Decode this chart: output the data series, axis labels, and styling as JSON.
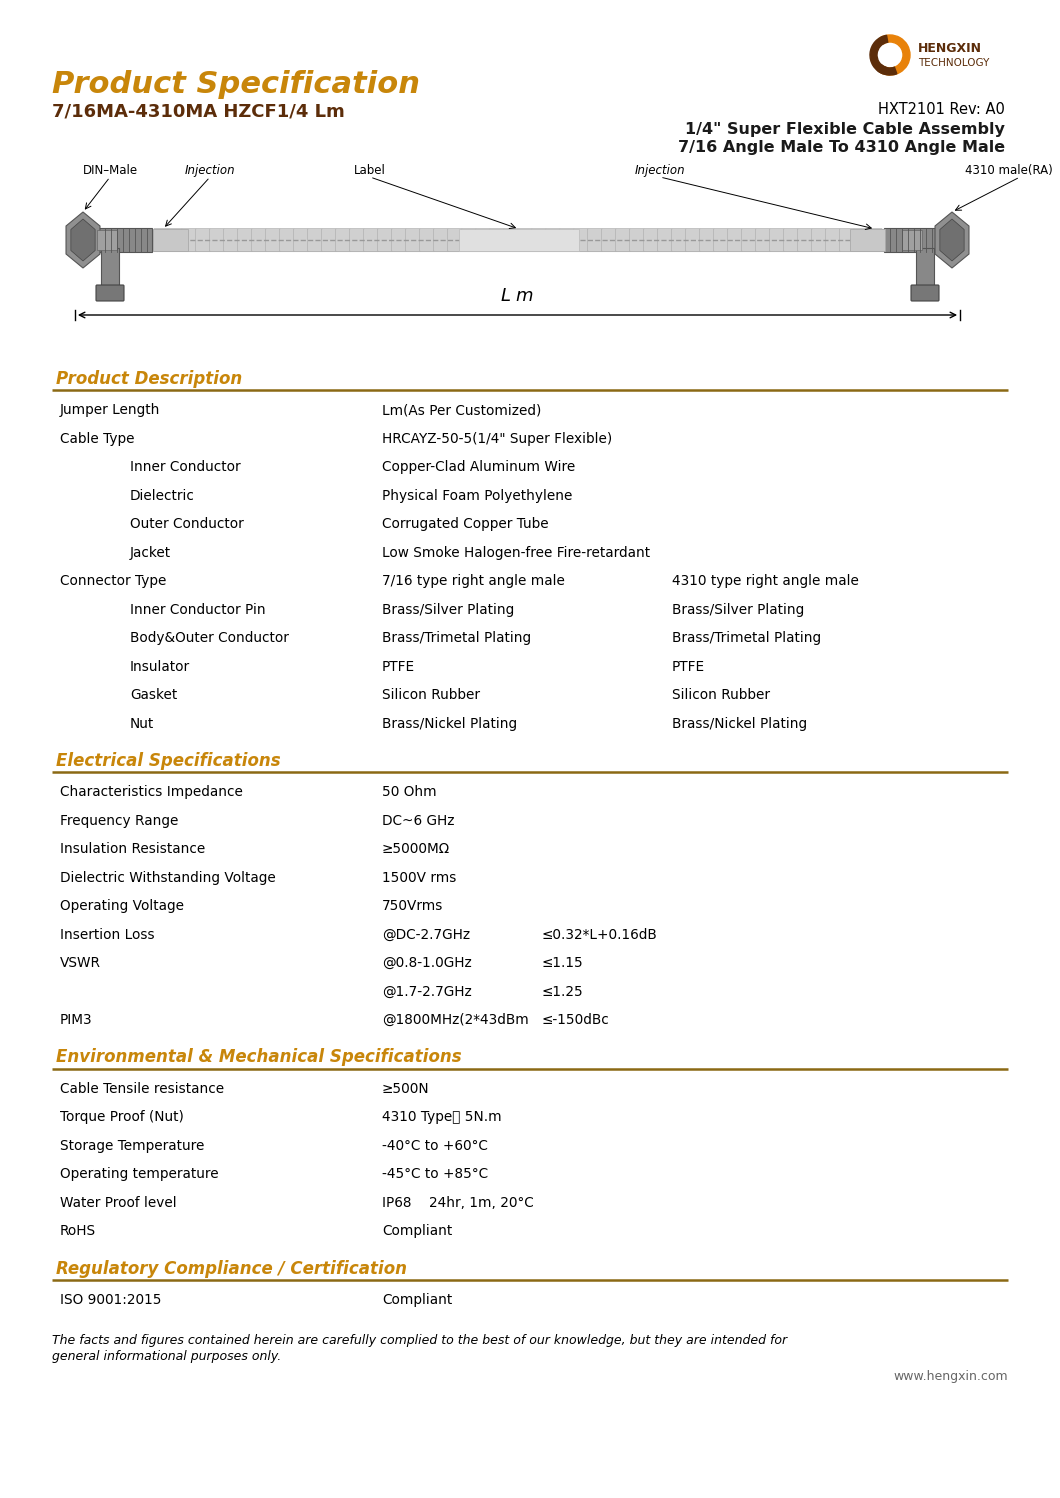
{
  "title": "Product Specification",
  "subtitle": "7/16MA-4310MA HZCF1/4 Lm",
  "model_code": "HXT2101 Rev: A0",
  "cable_title_line1": "1/4\" Super Flexible Cable Assembly",
  "cable_title_line2": "7/16 Angle Male To 4310 Angle Male",
  "website": "www.hengxin.com",
  "section_color": "#C8860A",
  "line_color": "#8B6914",
  "text_color": "#000000",
  "bg_color": "#FFFFFF",
  "logo_color1": "#E8820A",
  "logo_color2": "#5C2D0A",
  "sections": [
    {
      "title": "Product Description",
      "rows": [
        {
          "col1": "Jumper Length",
          "indent": 0,
          "col2": "Lm(As Per Customized)",
          "col2b": "",
          "col3": ""
        },
        {
          "col1": "Cable Type",
          "indent": 0,
          "col2": "HRCAYZ-50-5(1/4\" Super Flexible)",
          "col2b": "",
          "col3": ""
        },
        {
          "col1": "Inner Conductor",
          "indent": 1,
          "col2": "Copper-Clad Aluminum Wire",
          "col2b": "",
          "col3": ""
        },
        {
          "col1": "Dielectric",
          "indent": 1,
          "col2": "Physical Foam Polyethylene",
          "col2b": "",
          "col3": ""
        },
        {
          "col1": "Outer Conductor",
          "indent": 1,
          "col2": "Corrugated Copper Tube",
          "col2b": "",
          "col3": ""
        },
        {
          "col1": "Jacket",
          "indent": 1,
          "col2": "Low Smoke Halogen-free Fire-retardant",
          "col2b": "",
          "col3": ""
        },
        {
          "col1": "Connector Type",
          "indent": 0,
          "col2": "7/16 type right angle male",
          "col2b": "",
          "col3": "4310 type right angle male"
        },
        {
          "col1": "Inner Conductor Pin",
          "indent": 1,
          "col2": "Brass/Silver Plating",
          "col2b": "",
          "col3": "Brass/Silver Plating"
        },
        {
          "col1": "Body&Outer Conductor",
          "indent": 1,
          "col2": "Brass/Trimetal Plating",
          "col2b": "",
          "col3": "Brass/Trimetal Plating"
        },
        {
          "col1": "Insulator",
          "indent": 1,
          "col2": "PTFE",
          "col2b": "",
          "col3": "PTFE"
        },
        {
          "col1": "Gasket",
          "indent": 1,
          "col2": "Silicon Rubber",
          "col2b": "",
          "col3": "Silicon Rubber"
        },
        {
          "col1": "Nut",
          "indent": 1,
          "col2": "Brass/Nickel Plating",
          "col2b": "",
          "col3": "Brass/Nickel Plating"
        }
      ]
    },
    {
      "title": "Electrical Specifications",
      "rows": [
        {
          "col1": "Characteristics Impedance",
          "indent": 0,
          "col2": "50 Ohm",
          "col2b": "",
          "col3": ""
        },
        {
          "col1": "Frequency Range",
          "indent": 0,
          "col2": "DC~6 GHz",
          "col2b": "",
          "col3": ""
        },
        {
          "col1": "Insulation Resistance",
          "indent": 0,
          "col2": "≥5000MΩ",
          "col2b": "",
          "col3": ""
        },
        {
          "col1": "Dielectric Withstanding Voltage",
          "indent": 0,
          "col2": "1500V rms",
          "col2b": "",
          "col3": ""
        },
        {
          "col1": "Operating Voltage",
          "indent": 0,
          "col2": "750Vrms",
          "col2b": "",
          "col3": ""
        },
        {
          "col1": "Insertion Loss",
          "indent": 0,
          "col2": "@DC-2.7GHz",
          "col2b": "≤0.32*L+0.16dB",
          "col3": ""
        },
        {
          "col1": "VSWR",
          "indent": 0,
          "col2": "@0.8-1.0GHz",
          "col2b": "≤1.15",
          "col3": ""
        },
        {
          "col1": "",
          "indent": 0,
          "col2": "@1.7-2.7GHz",
          "col2b": "≤1.25",
          "col3": ""
        },
        {
          "col1": "PIM3",
          "indent": 0,
          "col2": "@1800MHz(2*43dBm",
          "col2b": "≤-150dBc",
          "col3": ""
        }
      ]
    },
    {
      "title": "Environmental & Mechanical Specifications",
      "rows": [
        {
          "col1": "Cable Tensile resistance",
          "indent": 0,
          "col2": "≥500N",
          "col2b": "",
          "col3": ""
        },
        {
          "col1": "Torque Proof (Nut)",
          "indent": 0,
          "col2": "4310 Type： 5N.m",
          "col2b": "",
          "col3": ""
        },
        {
          "col1": "Storage Temperature",
          "indent": 0,
          "col2": "-40°C to +60°C",
          "col2b": "",
          "col3": ""
        },
        {
          "col1": "Operating temperature",
          "indent": 0,
          "col2": "-45°C to +85°C",
          "col2b": "",
          "col3": ""
        },
        {
          "col1": "Water Proof level",
          "indent": 0,
          "col2": "IP68    24hr, 1m, 20°C",
          "col2b": "",
          "col3": ""
        },
        {
          "col1": "RoHS",
          "indent": 0,
          "col2": "Compliant",
          "col2b": "",
          "col3": ""
        }
      ]
    },
    {
      "title": "Regulatory Compliance / Certification",
      "rows": [
        {
          "col1": "ISO 9001:2015",
          "indent": 0,
          "col2": "Compliant",
          "col2b": "",
          "col3": ""
        }
      ]
    }
  ],
  "footer_line1": "The facts and figures contained herein are carefully complied to the best of our knowledge, but they are intended for",
  "footer_line2": "general informational purposes only."
}
